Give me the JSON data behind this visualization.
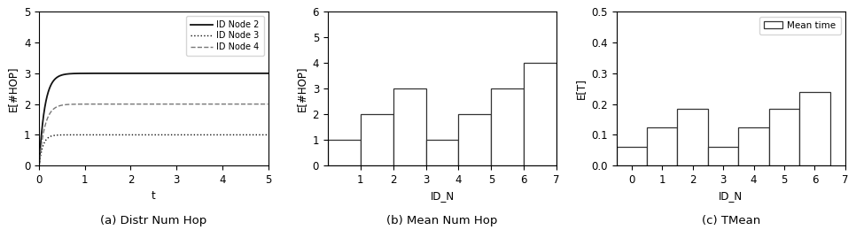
{
  "subplot_a": {
    "caption": "(a) Distr Num Hop",
    "xlabel": "t",
    "ylabel": "E[#HOP]",
    "xlim": [
      0,
      5
    ],
    "ylim": [
      0,
      5
    ],
    "xticks": [
      0,
      1,
      2,
      3,
      4,
      5
    ],
    "yticks": [
      0,
      1,
      2,
      3,
      4,
      5
    ],
    "lines": [
      {
        "label": "ID Node 2",
        "steady": 3.0,
        "rate": 8.0,
        "style": "solid",
        "color": "#111111",
        "lw": 1.3
      },
      {
        "label": "ID Node 3",
        "steady": 1.0,
        "rate": 12.0,
        "style": "dotted",
        "color": "#111111",
        "lw": 1.0
      },
      {
        "label": "ID Node 4",
        "steady": 2.0,
        "rate": 8.0,
        "style": "dashed",
        "color": "#777777",
        "lw": 1.0
      }
    ]
  },
  "subplot_b": {
    "caption": "(b) Mean Num Hop",
    "xlabel": "ID_N",
    "ylabel": "E[#HOP]",
    "xlim": [
      0,
      7
    ],
    "ylim": [
      0,
      6
    ],
    "xticks": [
      1,
      2,
      3,
      4,
      5,
      6,
      7
    ],
    "yticks": [
      0,
      1,
      2,
      3,
      4,
      5,
      6
    ],
    "bar_positions": [
      1,
      2,
      3,
      4,
      5,
      6
    ],
    "bar_values": [
      1,
      2,
      3,
      1,
      2,
      3,
      4
    ],
    "bar_centers": [
      0.5,
      1.5,
      2.5,
      3.5,
      4.5,
      5.5,
      6.5
    ]
  },
  "subplot_c": {
    "caption": "(c) TMean",
    "xlabel": "ID_N",
    "ylabel": "E[T]",
    "xlim": [
      -0.5,
      7
    ],
    "ylim": [
      0,
      0.5
    ],
    "xticks": [
      0,
      1,
      2,
      3,
      4,
      5,
      6,
      7
    ],
    "yticks": [
      0.0,
      0.1,
      0.2,
      0.3,
      0.4,
      0.5
    ],
    "bar_positions": [
      0,
      1,
      2,
      3,
      4,
      5,
      6
    ],
    "bar_values": [
      0.06,
      0.125,
      0.185,
      0.06,
      0.125,
      0.185,
      0.24
    ],
    "legend_label": "Mean time"
  },
  "figure_bg": "#ffffff",
  "axes_bg": "#ffffff",
  "font_size": 8.5,
  "caption_font_size": 9.5
}
